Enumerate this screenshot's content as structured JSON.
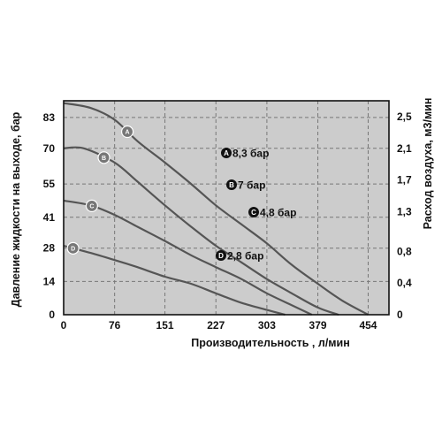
{
  "chart_data": {
    "type": "line",
    "xlabel": "Производительность , л/мин",
    "ylabel": "Давление жидкости на выходе, бар",
    "y2label": "Расход воздуха, м3/мин",
    "x_ticks": [
      "0",
      "76",
      "151",
      "227",
      "303",
      "379",
      "454"
    ],
    "y_ticks": [
      "0",
      "14",
      "28",
      "41",
      "55",
      "70",
      "83"
    ],
    "y2_ticks": [
      "0",
      "0,4",
      "0,8",
      "1,3",
      "1,7",
      "2,1",
      "2,5"
    ],
    "xlim": [
      0,
      485
    ],
    "ylim": [
      0,
      90
    ],
    "y2lim": [
      0,
      2.7
    ],
    "grid": true,
    "background": "#cccccc",
    "line_color": "#555555",
    "series": [
      {
        "name": "A",
        "legend": "8,3 бар",
        "x": [
          0,
          40,
          76,
          110,
          151,
          190,
          227,
          265,
          303,
          340,
          379,
          415,
          454
        ],
        "y": [
          89,
          87,
          82,
          73,
          64,
          55,
          46,
          38,
          30,
          21,
          13,
          6,
          0
        ]
      },
      {
        "name": "B",
        "legend": "7 бар",
        "x": [
          0,
          30,
          76,
          110,
          151,
          190,
          227,
          265,
          303,
          340,
          379,
          410
        ],
        "y": [
          70,
          70,
          64,
          56,
          46,
          37,
          29,
          22,
          15,
          9,
          3,
          0
        ]
      },
      {
        "name": "C",
        "legend": "4,8 бар",
        "x": [
          0,
          40,
          76,
          110,
          151,
          190,
          227,
          265,
          303,
          340,
          370
        ],
        "y": [
          48,
          46,
          42,
          37,
          31,
          25,
          20,
          15,
          9,
          4,
          0
        ]
      },
      {
        "name": "D",
        "legend": "2,8 бар",
        "x": [
          0,
          40,
          76,
          110,
          151,
          190,
          227,
          265,
          303,
          330
        ],
        "y": [
          29,
          26,
          23,
          20,
          16,
          13,
          9,
          5,
          2,
          0
        ]
      }
    ],
    "legend_items": [
      {
        "letter": "A",
        "text": "8,3 бар"
      },
      {
        "letter": "B",
        "text": "7 бар"
      },
      {
        "letter": "C",
        "text": "4,8 бар"
      },
      {
        "letter": "D",
        "text": "2,8 бар"
      }
    ]
  }
}
